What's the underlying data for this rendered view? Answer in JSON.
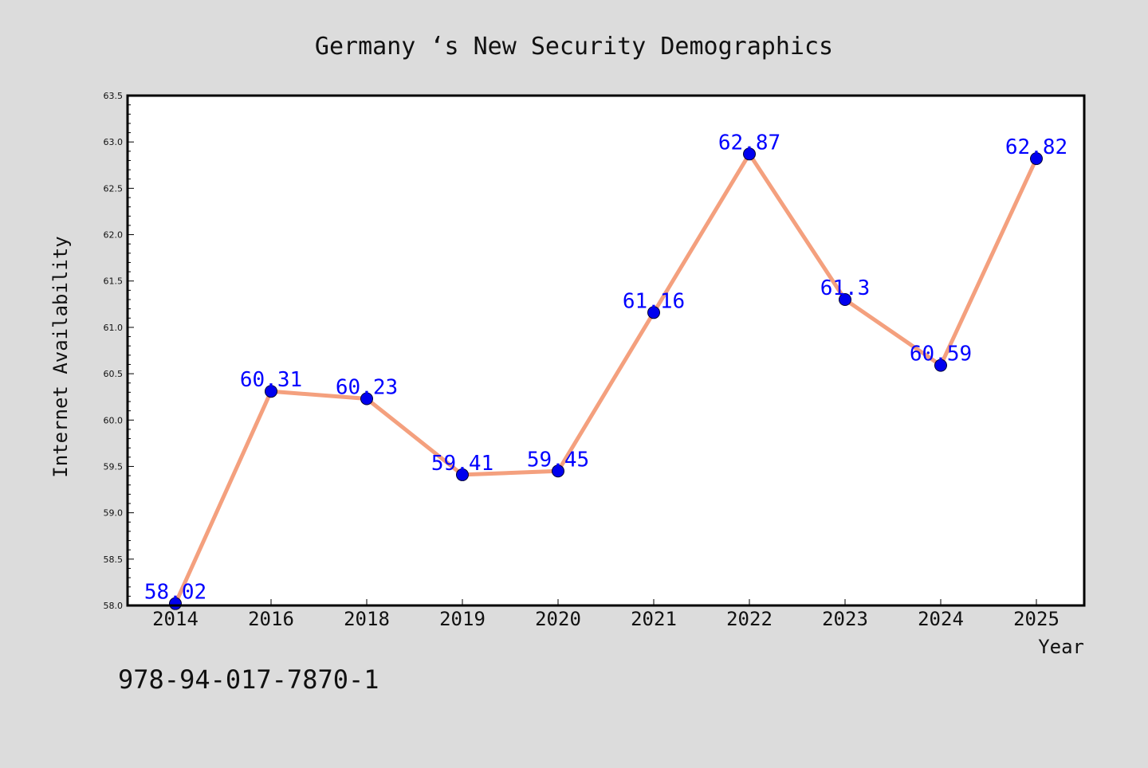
{
  "colors": {
    "background": "#dcdcdc",
    "plot_background": "#ffffff",
    "line": "#f4a07e",
    "marker": "#0000ee",
    "data_label": "#0000ff",
    "axis": "#000000"
  },
  "footnote": "978-94-017-7870-1",
  "chart_data": {
    "type": "line",
    "title": "Germany ‘s New Security Demographics",
    "xlabel": "Year",
    "ylabel": "Internet Availability",
    "categories": [
      "2014",
      "2016",
      "2018",
      "2019",
      "2020",
      "2021",
      "2022",
      "2023",
      "2024",
      "2025"
    ],
    "series": [
      {
        "values": [
          58.02,
          60.31,
          60.23,
          59.41,
          59.45,
          61.16,
          62.87,
          61.3,
          60.59,
          62.82
        ],
        "labels": [
          "58.02",
          "60.31",
          "60.23",
          "59.41",
          "59.45",
          "61.16",
          "62.87",
          "61.3",
          "60.59",
          "62.82"
        ]
      }
    ],
    "ylim": [
      58.0,
      63.5
    ],
    "yticks": [
      "58.0",
      "58.5",
      "59.0",
      "59.5",
      "60.0",
      "60.5",
      "61.0",
      "61.5",
      "62.0",
      "62.5",
      "63.0",
      "63.5"
    ],
    "grid": false,
    "legend": "none"
  }
}
